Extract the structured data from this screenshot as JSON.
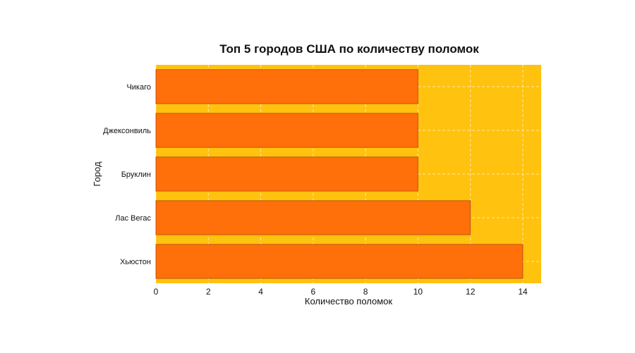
{
  "chart_data": {
    "type": "bar",
    "orientation": "horizontal",
    "title": "Топ 5 городов США по количеству поломок",
    "xlabel": "Количество поломок",
    "ylabel": "Город",
    "categories": [
      "Чикаго",
      "Джексонвиль",
      "Бруклин",
      "Лас Вегас",
      "Хьюстон"
    ],
    "values": [
      10,
      10,
      10,
      12,
      14
    ],
    "xlim": [
      0,
      14.7
    ],
    "xticks": [
      0,
      2,
      4,
      6,
      8,
      10,
      12,
      14
    ],
    "grid": true,
    "colors": {
      "plot_background": "#FFC20E",
      "bar_fill": "#FF6F0A",
      "bar_edge": "#B04A10",
      "grid": "#FFE9A8"
    }
  }
}
